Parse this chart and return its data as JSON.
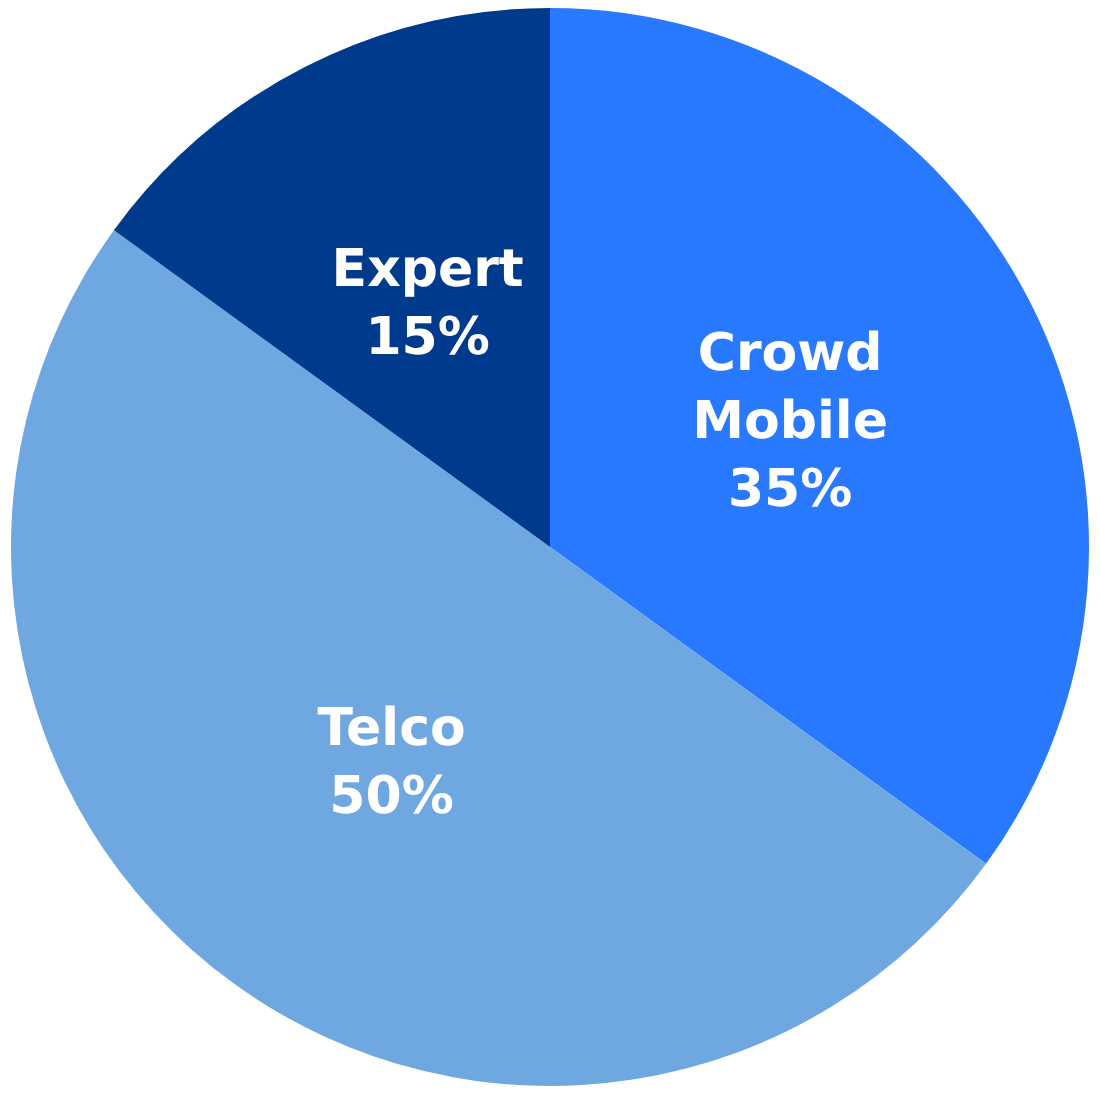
{
  "chart_data": {
    "type": "pie",
    "categories": [
      "Crowd Mobile",
      "Telco",
      "Expert"
    ],
    "values": [
      35,
      50,
      15
    ],
    "colors": [
      "#2979ff",
      "#6fa8e0",
      "#003a8c"
    ],
    "value_labels": [
      "35%",
      "50%",
      "15%"
    ],
    "legend": false
  }
}
